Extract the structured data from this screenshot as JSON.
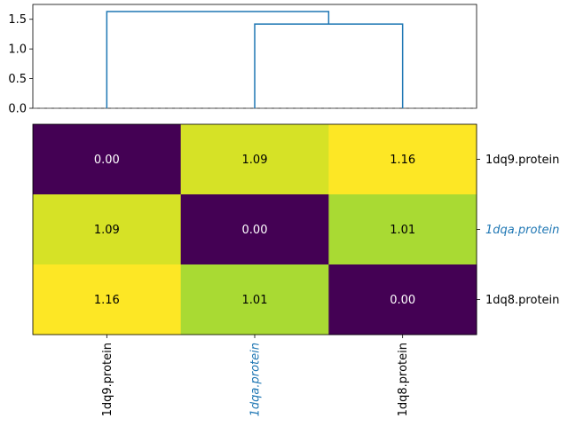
{
  "chart_data": [
    {
      "type": "dendrogram",
      "ylim": [
        0.0,
        1.75
      ],
      "yticks": [
        0.0,
        0.5,
        1.0,
        1.5
      ],
      "ytick_labels": [
        "0.0",
        "0.5",
        "1.0",
        "1.5"
      ],
      "leaf_order": [
        "1dq9.protein",
        "1dqa.protein",
        "1dq8.protein"
      ],
      "merges": [
        {
          "left": "1dqa.protein",
          "right": "1dq8.protein",
          "height": 1.42
        },
        {
          "left": "1dq9.protein",
          "right": "cluster(1dqa.protein,1dq8.protein)",
          "height": 1.63
        }
      ],
      "threshold_line": 0.0,
      "link_color": "#1f77b4"
    },
    {
      "type": "heatmap",
      "rows": [
        "1dq9.protein",
        "1dqa.protein",
        "1dq8.protein"
      ],
      "columns": [
        "1dq9.protein",
        "1dqa.protein",
        "1dq8.protein"
      ],
      "values": [
        [
          0.0,
          1.09,
          1.16
        ],
        [
          1.09,
          0.0,
          1.01
        ],
        [
          1.16,
          1.01,
          0.0
        ]
      ],
      "value_labels": [
        [
          "0.00",
          "1.09",
          "1.16"
        ],
        [
          "1.09",
          "0.00",
          "1.01"
        ],
        [
          "1.16",
          "1.01",
          "0.00"
        ]
      ],
      "colormap": "viridis",
      "vmin": 0.0,
      "vmax": 1.16,
      "highlighted_label": "1dqa.protein",
      "highlight_color": "#1f77b4"
    }
  ]
}
